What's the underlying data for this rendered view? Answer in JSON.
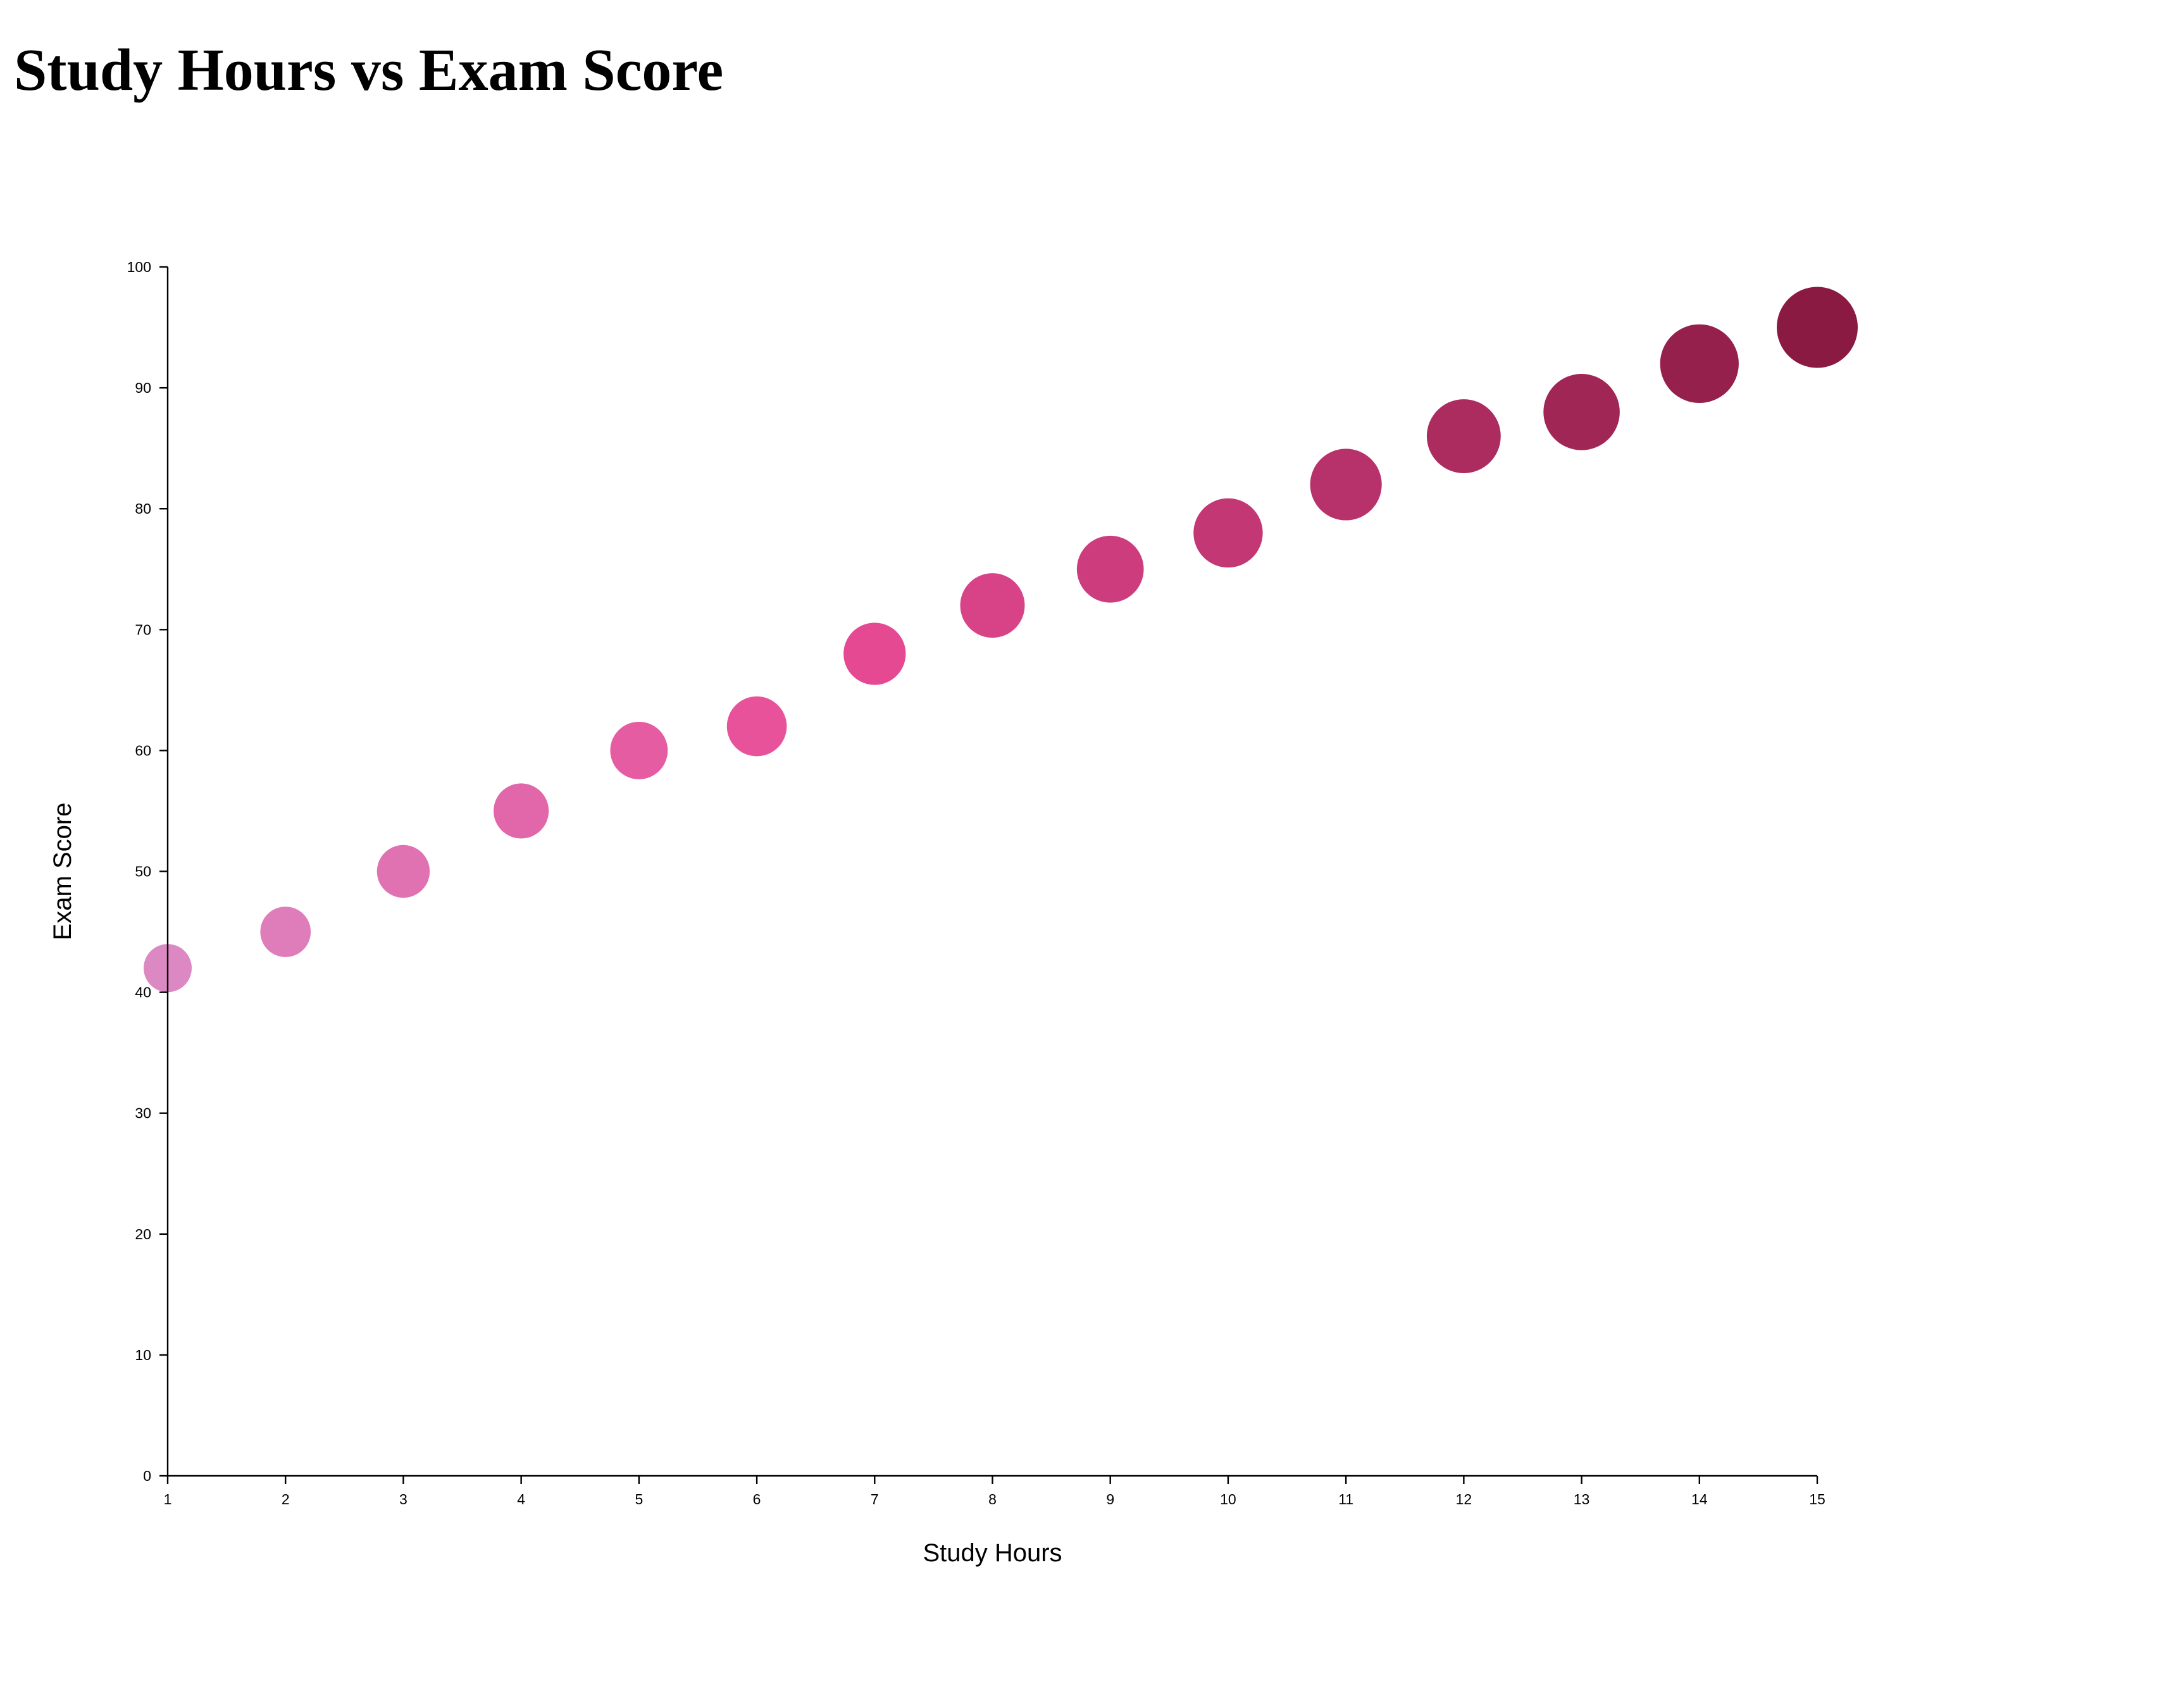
{
  "chart_data": {
    "type": "scatter",
    "title": "Study Hours vs Exam Score",
    "xlabel": "Study Hours",
    "ylabel": "Exam Score",
    "xlim": [
      1,
      15
    ],
    "ylim": [
      0,
      100
    ],
    "x_ticks": [
      "1",
      "2",
      "3",
      "4",
      "5",
      "6",
      "7",
      "8",
      "9",
      "10",
      "11",
      "12",
      "13",
      "14",
      "15"
    ],
    "y_ticks": [
      "0",
      "10",
      "20",
      "30",
      "40",
      "50",
      "60",
      "70",
      "80",
      "90",
      "100"
    ],
    "grid": false,
    "legend": "none",
    "size_encodes": "x",
    "color_encodes": "x",
    "color_range": [
      "#dc88c2",
      "#8a1a42"
    ],
    "points": [
      {
        "x": 1,
        "y": 42
      },
      {
        "x": 2,
        "y": 45
      },
      {
        "x": 3,
        "y": 50
      },
      {
        "x": 4,
        "y": 55
      },
      {
        "x": 5,
        "y": 60
      },
      {
        "x": 6,
        "y": 62
      },
      {
        "x": 7,
        "y": 68
      },
      {
        "x": 8,
        "y": 72
      },
      {
        "x": 9,
        "y": 75
      },
      {
        "x": 10,
        "y": 78
      },
      {
        "x": 11,
        "y": 82
      },
      {
        "x": 12,
        "y": 86
      },
      {
        "x": 13,
        "y": 88
      },
      {
        "x": 14,
        "y": 92
      },
      {
        "x": 15,
        "y": 95
      }
    ]
  }
}
